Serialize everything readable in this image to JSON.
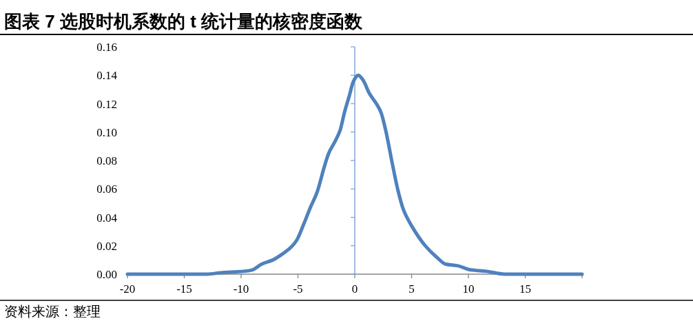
{
  "chart_data": {
    "type": "line",
    "title": "图表 7 选股时机系数的 t 统计量的核密度函数",
    "annotations": [
      "资料来源：整理"
    ],
    "x": [
      -20,
      -15,
      -13,
      -11.8,
      -9.8,
      -9,
      -8.2,
      -7.2,
      -6.4,
      -5.6,
      -5.1,
      -4.5,
      -3.9,
      -3.3,
      -2.7,
      -2.3,
      -1.7,
      -1.3,
      -0.9,
      -0.5,
      -0.1,
      0.3,
      0.7,
      1.3,
      1.9,
      2.3,
      2.7,
      3.3,
      3.8,
      4.3,
      5,
      6.2,
      7.2,
      8,
      9,
      10.2,
      11.6,
      13.2,
      15,
      20
    ],
    "values": [
      0,
      0,
      0,
      0.001,
      0.002,
      0.003,
      0.007,
      0.01,
      0.014,
      0.019,
      0.024,
      0.035,
      0.047,
      0.058,
      0.075,
      0.085,
      0.094,
      0.101,
      0.114,
      0.125,
      0.136,
      0.14,
      0.137,
      0.127,
      0.12,
      0.114,
      0.102,
      0.078,
      0.059,
      0.045,
      0.034,
      0.02,
      0.012,
      0.007,
      0.006,
      0.003,
      0.002,
      0,
      0,
      0
    ],
    "color": "#4f81bd",
    "xlim": [
      -20,
      20
    ],
    "xticks": [
      -20,
      -15,
      -10,
      -5,
      0,
      5,
      10,
      15,
      {
        "value": 20,
        "label": null
      }
    ],
    "ylim": [
      0,
      0.16
    ],
    "yticks": [
      {
        "value": 0,
        "label": "0.00"
      },
      {
        "value": 0.02,
        "label": "0.02"
      },
      {
        "value": 0.04,
        "label": "0.04"
      },
      {
        "value": 0.06,
        "label": "0.06"
      },
      {
        "value": 0.08,
        "label": "0.08"
      },
      {
        "value": 0.1,
        "label": "0.10"
      },
      {
        "value": 0.12,
        "label": "0.12"
      },
      {
        "value": 0.14,
        "label": "0.14"
      },
      {
        "value": 0.16,
        "label": "0.16"
      }
    ],
    "ref_lines": [
      {
        "axis": "x",
        "value": 0,
        "color": "#7ea6d8"
      }
    ]
  }
}
